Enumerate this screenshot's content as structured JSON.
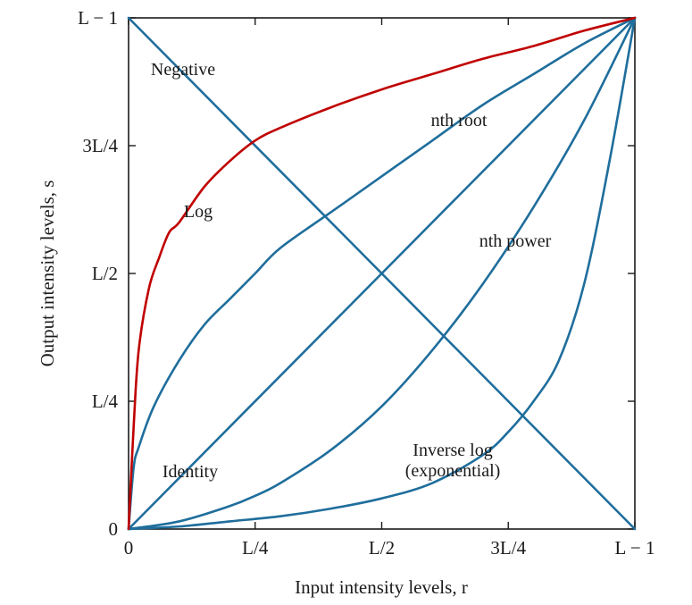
{
  "chart_data": {
    "type": "line",
    "title": "",
    "xlabel": "Input intensity levels, r",
    "ylabel": "Output intensity levels, s",
    "xlim": [
      0,
      1
    ],
    "ylim": [
      0,
      1
    ],
    "x_ticks": [
      {
        "value": 0,
        "label": "0"
      },
      {
        "value": 0.25,
        "label": "L/4"
      },
      {
        "value": 0.5,
        "label": "L/2"
      },
      {
        "value": 0.75,
        "label": "3L/4"
      },
      {
        "value": 1,
        "label": "L − 1"
      }
    ],
    "y_ticks": [
      {
        "value": 0,
        "label": "0"
      },
      {
        "value": 0.25,
        "label": "L/4"
      },
      {
        "value": 0.5,
        "label": "L/2"
      },
      {
        "value": 0.75,
        "label": "3L/4"
      },
      {
        "value": 1,
        "label": "L − 1"
      }
    ],
    "colors": {
      "curve": "#1f6e9c",
      "highlight": "#c00000",
      "axis": "#1a1a1a"
    },
    "series": [
      {
        "name": "Negative",
        "color": "#1f6e9c",
        "x": [
          0,
          1
        ],
        "y": [
          1,
          0
        ]
      },
      {
        "name": "Identity",
        "color": "#1f6e9c",
        "x": [
          0,
          1
        ],
        "y": [
          0,
          1
        ]
      },
      {
        "name": "Log",
        "color": "#c00000",
        "x": [
          0,
          0.01,
          0.02,
          0.04,
          0.06,
          0.08,
          0.1,
          0.15,
          0.2,
          0.25,
          0.3,
          0.4,
          0.5,
          0.6,
          0.7,
          0.8,
          0.9,
          1
        ],
        "y": [
          0,
          0.2,
          0.35,
          0.47,
          0.53,
          0.58,
          0.6,
          0.67,
          0.72,
          0.76,
          0.785,
          0.825,
          0.86,
          0.89,
          0.92,
          0.945,
          0.975,
          1
        ]
      },
      {
        "name": "nth root",
        "color": "#1f6e9c",
        "x": [
          0,
          0.01,
          0.02,
          0.05,
          0.1,
          0.15,
          0.2,
          0.25,
          0.3,
          0.4,
          0.5,
          0.6,
          0.7,
          0.8,
          0.9,
          1
        ],
        "y": [
          0,
          0.12,
          0.16,
          0.24,
          0.33,
          0.4,
          0.45,
          0.5,
          0.55,
          0.62,
          0.69,
          0.76,
          0.83,
          0.89,
          0.95,
          1
        ]
      },
      {
        "name": "nth power",
        "color": "#1f6e9c",
        "x": [
          0,
          0.1,
          0.2,
          0.25,
          0.3,
          0.4,
          0.5,
          0.6,
          0.7,
          0.8,
          0.9,
          1
        ],
        "y": [
          0,
          0.015,
          0.045,
          0.065,
          0.09,
          0.155,
          0.24,
          0.35,
          0.48,
          0.63,
          0.8,
          1
        ]
      },
      {
        "name": "Inverse log (exponential)",
        "color": "#1f6e9c",
        "x": [
          0,
          0.1,
          0.2,
          0.3,
          0.4,
          0.5,
          0.6,
          0.7,
          0.75,
          0.8,
          0.85,
          0.9,
          0.95,
          1
        ],
        "y": [
          0,
          0.005,
          0.015,
          0.025,
          0.04,
          0.06,
          0.09,
          0.145,
          0.19,
          0.25,
          0.33,
          0.48,
          0.72,
          1
        ]
      }
    ],
    "annotations": [
      {
        "series": "Negative",
        "text": "Negative"
      },
      {
        "series": "nth root",
        "text": "nth root"
      },
      {
        "series": "Log",
        "text": "Log"
      },
      {
        "series": "nth power",
        "text": "nth power"
      },
      {
        "series": "Identity",
        "text": "Identity"
      },
      {
        "series": "Inverse log (exponential)",
        "text_lines": [
          "Inverse log",
          "(exponential)"
        ]
      }
    ]
  }
}
